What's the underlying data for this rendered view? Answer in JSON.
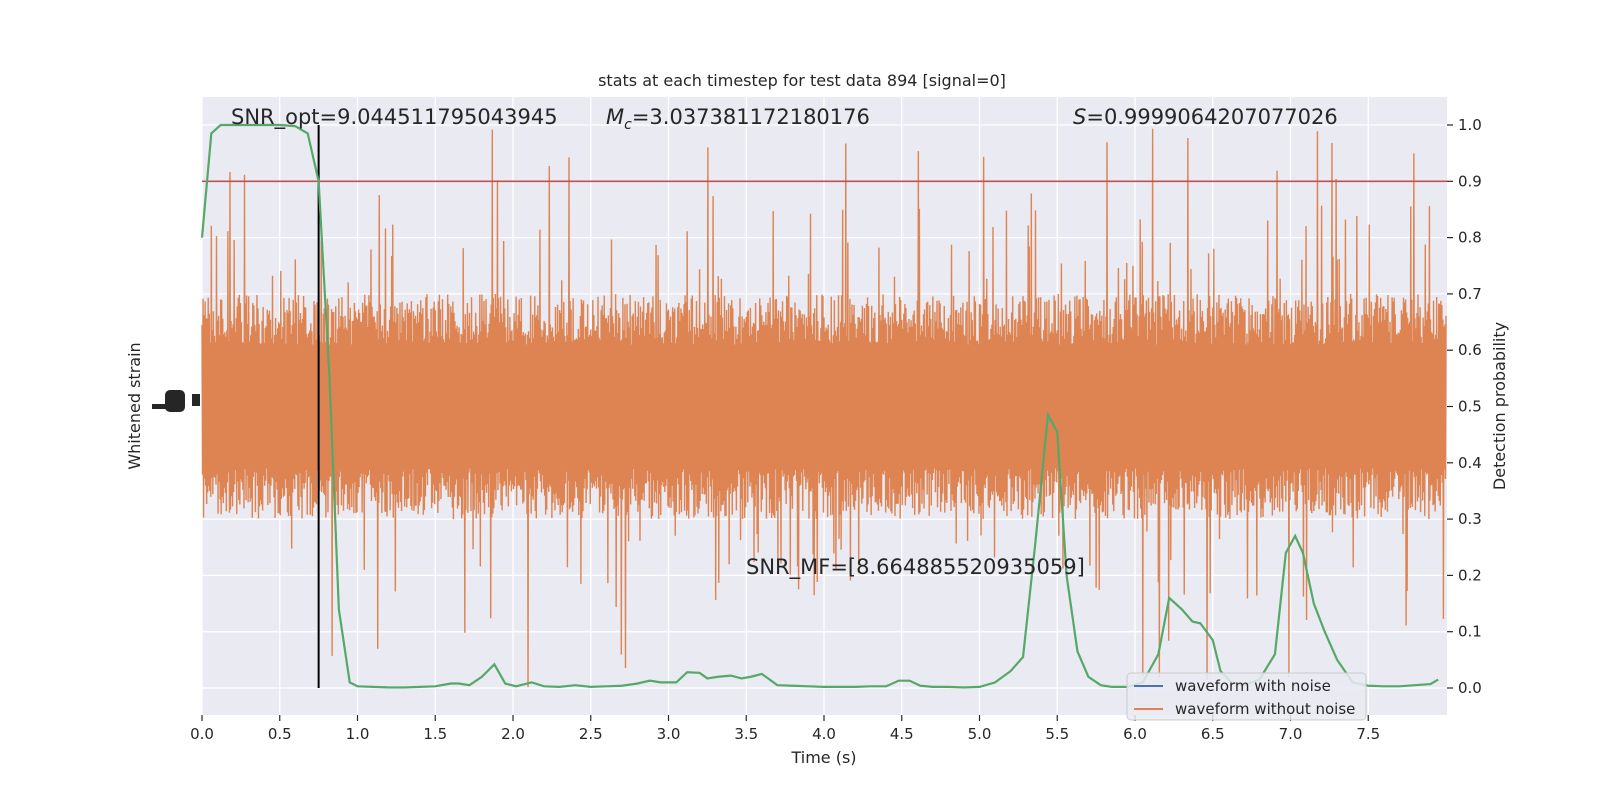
{
  "chart_data": {
    "type": "line",
    "title": "stats at each timestep for test data 894 [signal=0]",
    "xlabel": "Time (s)",
    "ylabel_left": "Whitened strain",
    "ylabel_right": "Detection probability",
    "xlim": [
      0,
      8
    ],
    "ylim_right": [
      -0.05,
      1.05
    ],
    "x_ticks": [
      "0.0",
      "0.5",
      "1.0",
      "1.5",
      "2.0",
      "2.5",
      "3.0",
      "3.5",
      "4.0",
      "4.5",
      "5.0",
      "5.5",
      "6.0",
      "6.5",
      "7.0",
      "7.5"
    ],
    "y_right_ticks": [
      "0.0",
      "0.1",
      "0.2",
      "0.3",
      "0.4",
      "0.5",
      "0.6",
      "0.7",
      "0.8",
      "0.9",
      "1.0"
    ],
    "grid": true,
    "legend_position": "bottom-right",
    "legend": [
      {
        "label": "waveform with noise",
        "color": "#4c72b0"
      },
      {
        "label": "waveform without noise",
        "color": "#dd8452"
      }
    ],
    "annotations": {
      "snr_opt": "SNR_opt=9.044511795043945",
      "mc_symbol": "M",
      "mc_sub": "c",
      "mc_value": "=3.037381172180176",
      "s_symbol": "S",
      "s_value": "=0.9999064207077026",
      "snr_mf": "SNR_MF=[8.664885520935059]"
    },
    "threshold": 0.9,
    "marker_time": 0.75,
    "noise_band": {
      "center": 0.5,
      "typical_halfwidth": 0.2,
      "max": 1.0,
      "min": 0.0
    },
    "series": [
      {
        "name": "Detection probability",
        "color": "#55a868",
        "x": [
          0.0,
          0.06,
          0.12,
          0.2,
          0.3,
          0.4,
          0.5,
          0.6,
          0.68,
          0.75,
          0.82,
          0.88,
          0.95,
          1.0,
          1.1,
          1.2,
          1.3,
          1.4,
          1.5,
          1.6,
          1.65,
          1.72,
          1.8,
          1.88,
          1.95,
          2.02,
          2.12,
          2.2,
          2.3,
          2.4,
          2.5,
          2.6,
          2.7,
          2.8,
          2.88,
          2.95,
          3.05,
          3.12,
          3.2,
          3.25,
          3.32,
          3.4,
          3.47,
          3.53,
          3.6,
          3.7,
          3.8,
          3.9,
          4.0,
          4.1,
          4.2,
          4.3,
          4.4,
          4.48,
          4.55,
          4.62,
          4.7,
          4.8,
          4.9,
          5.0,
          5.1,
          5.2,
          5.28,
          5.36,
          5.44,
          5.5,
          5.56,
          5.63,
          5.7,
          5.78,
          5.85,
          5.95,
          6.05,
          6.15,
          6.22,
          6.3,
          6.37,
          6.42,
          6.5,
          6.55,
          6.62,
          6.7,
          6.8,
          6.9,
          6.97,
          7.03,
          7.08,
          7.15,
          7.22,
          7.3,
          7.4,
          7.5,
          7.6,
          7.7,
          7.8,
          7.9,
          7.95
        ],
        "y": [
          0.8,
          0.985,
          1.0,
          1.0,
          1.0,
          1.0,
          1.0,
          0.998,
          0.985,
          0.9,
          0.55,
          0.14,
          0.01,
          0.003,
          0.002,
          0.001,
          0.001,
          0.002,
          0.003,
          0.008,
          0.008,
          0.005,
          0.02,
          0.042,
          0.008,
          0.003,
          0.01,
          0.003,
          0.002,
          0.005,
          0.002,
          0.003,
          0.004,
          0.008,
          0.013,
          0.01,
          0.01,
          0.028,
          0.027,
          0.017,
          0.02,
          0.022,
          0.017,
          0.02,
          0.025,
          0.005,
          0.004,
          0.003,
          0.002,
          0.002,
          0.002,
          0.003,
          0.003,
          0.013,
          0.013,
          0.004,
          0.002,
          0.002,
          0.001,
          0.002,
          0.01,
          0.03,
          0.055,
          0.26,
          0.485,
          0.455,
          0.2,
          0.065,
          0.02,
          0.005,
          0.002,
          0.002,
          0.01,
          0.06,
          0.16,
          0.14,
          0.118,
          0.115,
          0.085,
          0.03,
          0.01,
          0.005,
          0.015,
          0.06,
          0.24,
          0.27,
          0.24,
          0.15,
          0.1,
          0.05,
          0.01,
          0.004,
          0.003,
          0.003,
          0.005,
          0.007,
          0.015
        ]
      }
    ]
  }
}
